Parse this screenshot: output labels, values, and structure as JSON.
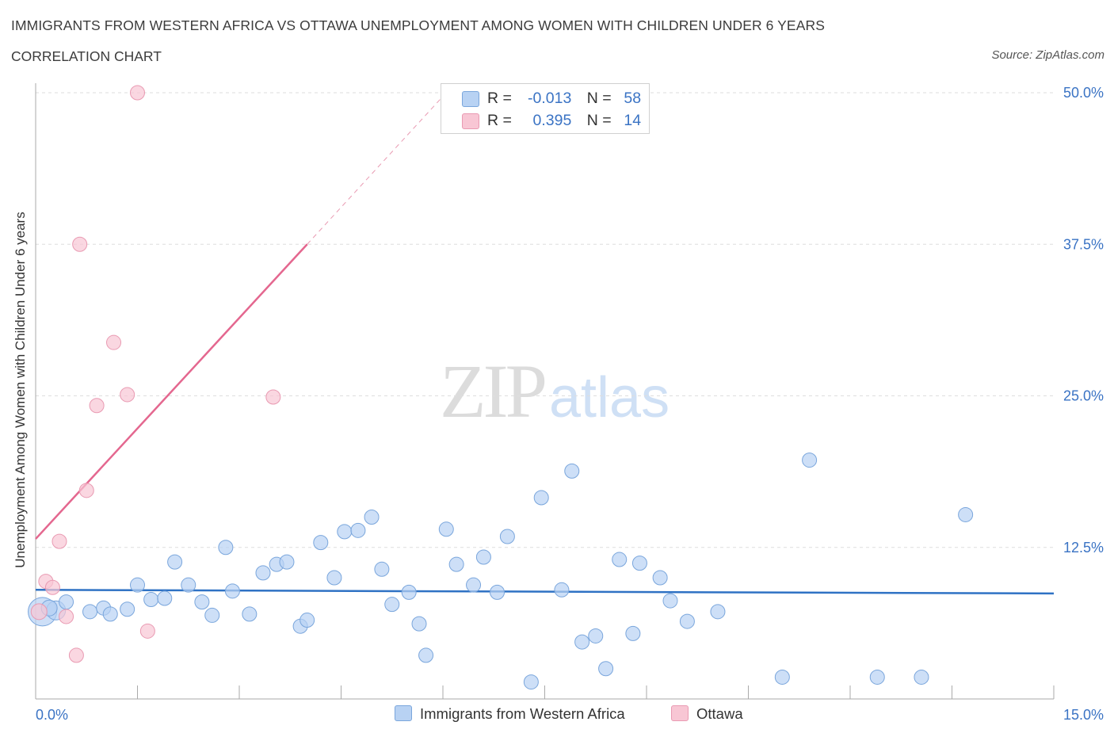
{
  "title": "IMMIGRANTS FROM WESTERN AFRICA VS OTTAWA UNEMPLOYMENT AMONG WOMEN WITH CHILDREN UNDER 6 YEARS",
  "subtitle": "CORRELATION CHART",
  "source": "Source: ZipAtlas.com",
  "watermark": {
    "zip": "ZIP",
    "atlas": "atlas"
  },
  "colors": {
    "blue_fill": "#b8d2f3",
    "blue_stroke": "#7aa6dc",
    "blue_line": "#2f72c4",
    "pink_fill": "#f8c6d4",
    "pink_stroke": "#e99ab2",
    "pink_line": "#e4678f",
    "tick_text": "#3a73c4",
    "grid": "#dedede"
  },
  "legend": {
    "r_label": "R =",
    "n_label": "N =",
    "series": [
      {
        "name": "Immigrants from Western Africa",
        "r": "-0.013",
        "n": "58"
      },
      {
        "name": "Ottawa",
        "r": "0.395",
        "n": "14"
      }
    ]
  },
  "chart_data": {
    "type": "scatter",
    "xlabel": "",
    "ylabel": "Unemployment Among Women with Children Under 6 years",
    "xlim": [
      0,
      15
    ],
    "ylim": [
      0,
      50
    ],
    "x_tick_labels": [
      {
        "value": 0,
        "label": "0.0%"
      },
      {
        "value": 15,
        "label": "15.0%"
      }
    ],
    "y_tick_labels": [
      {
        "value": 12.5,
        "label": "12.5%"
      },
      {
        "value": 25,
        "label": "25.0%"
      },
      {
        "value": 37.5,
        "label": "37.5%"
      },
      {
        "value": 50,
        "label": "50.0%"
      }
    ],
    "series": [
      {
        "name": "Immigrants from Western Africa",
        "color": "blue",
        "trend": {
          "x": [
            0,
            15
          ],
          "y": [
            9.0,
            8.7
          ],
          "dashed_extension": false
        },
        "points": [
          [
            0.1,
            7.2,
            18
          ],
          [
            0.3,
            7.3,
            12
          ],
          [
            0.45,
            8.0,
            9
          ],
          [
            0.8,
            7.2,
            9
          ],
          [
            1.0,
            7.5,
            9
          ],
          [
            1.1,
            7.0,
            9
          ],
          [
            1.35,
            7.4,
            9
          ],
          [
            1.5,
            9.4,
            9
          ],
          [
            1.7,
            8.2,
            9
          ],
          [
            1.9,
            8.3,
            9
          ],
          [
            2.05,
            11.3,
            9
          ],
          [
            2.25,
            9.4,
            9
          ],
          [
            2.45,
            8.0,
            9
          ],
          [
            2.6,
            6.9,
            9
          ],
          [
            2.8,
            12.5,
            9
          ],
          [
            2.9,
            8.9,
            9
          ],
          [
            3.15,
            7.0,
            9
          ],
          [
            3.35,
            10.4,
            9
          ],
          [
            3.55,
            11.1,
            9
          ],
          [
            3.7,
            11.3,
            9
          ],
          [
            3.9,
            6.0,
            9
          ],
          [
            4.0,
            6.5,
            9
          ],
          [
            4.2,
            12.9,
            9
          ],
          [
            4.4,
            10.0,
            9
          ],
          [
            4.55,
            13.8,
            9
          ],
          [
            4.75,
            13.9,
            9
          ],
          [
            4.95,
            15.0,
            9
          ],
          [
            5.1,
            10.7,
            9
          ],
          [
            5.25,
            7.8,
            9
          ],
          [
            5.5,
            8.8,
            9
          ],
          [
            5.65,
            6.2,
            9
          ],
          [
            5.75,
            3.6,
            9
          ],
          [
            6.05,
            14.0,
            9
          ],
          [
            6.2,
            11.1,
            9
          ],
          [
            6.45,
            9.4,
            9
          ],
          [
            6.6,
            11.7,
            9
          ],
          [
            6.8,
            8.8,
            9
          ],
          [
            6.95,
            13.4,
            9
          ],
          [
            7.3,
            1.4,
            9
          ],
          [
            7.45,
            16.6,
            9
          ],
          [
            7.75,
            9.0,
            9
          ],
          [
            7.9,
            18.8,
            9
          ],
          [
            8.05,
            4.7,
            9
          ],
          [
            8.25,
            5.2,
            9
          ],
          [
            8.4,
            2.5,
            9
          ],
          [
            8.6,
            11.5,
            9
          ],
          [
            8.8,
            5.4,
            9
          ],
          [
            8.9,
            11.2,
            9
          ],
          [
            9.2,
            10.0,
            9
          ],
          [
            9.35,
            8.1,
            9
          ],
          [
            9.6,
            6.4,
            9
          ],
          [
            10.05,
            7.2,
            9
          ],
          [
            11.0,
            1.8,
            9
          ],
          [
            11.4,
            19.7,
            9
          ],
          [
            12.4,
            1.8,
            9
          ],
          [
            13.05,
            1.8,
            9
          ],
          [
            13.7,
            15.2,
            9
          ],
          [
            0.2,
            7.5,
            10
          ]
        ]
      },
      {
        "name": "Ottawa",
        "color": "pink",
        "trend": {
          "x": [
            0,
            4.0
          ],
          "y": [
            13.2,
            37.5
          ],
          "dashed_to": [
            6.0,
            49.7
          ]
        },
        "points": [
          [
            0.05,
            7.2,
            10
          ],
          [
            0.15,
            9.7,
            9
          ],
          [
            0.25,
            9.2,
            9
          ],
          [
            0.35,
            13.0,
            9
          ],
          [
            0.45,
            6.8,
            9
          ],
          [
            0.6,
            3.6,
            9
          ],
          [
            0.65,
            37.5,
            9
          ],
          [
            0.75,
            17.2,
            9
          ],
          [
            0.9,
            24.2,
            9
          ],
          [
            1.15,
            29.4,
            9
          ],
          [
            1.35,
            25.1,
            9
          ],
          [
            1.5,
            50.0,
            9
          ],
          [
            1.65,
            5.6,
            9
          ],
          [
            3.5,
            24.9,
            9
          ]
        ]
      }
    ]
  }
}
